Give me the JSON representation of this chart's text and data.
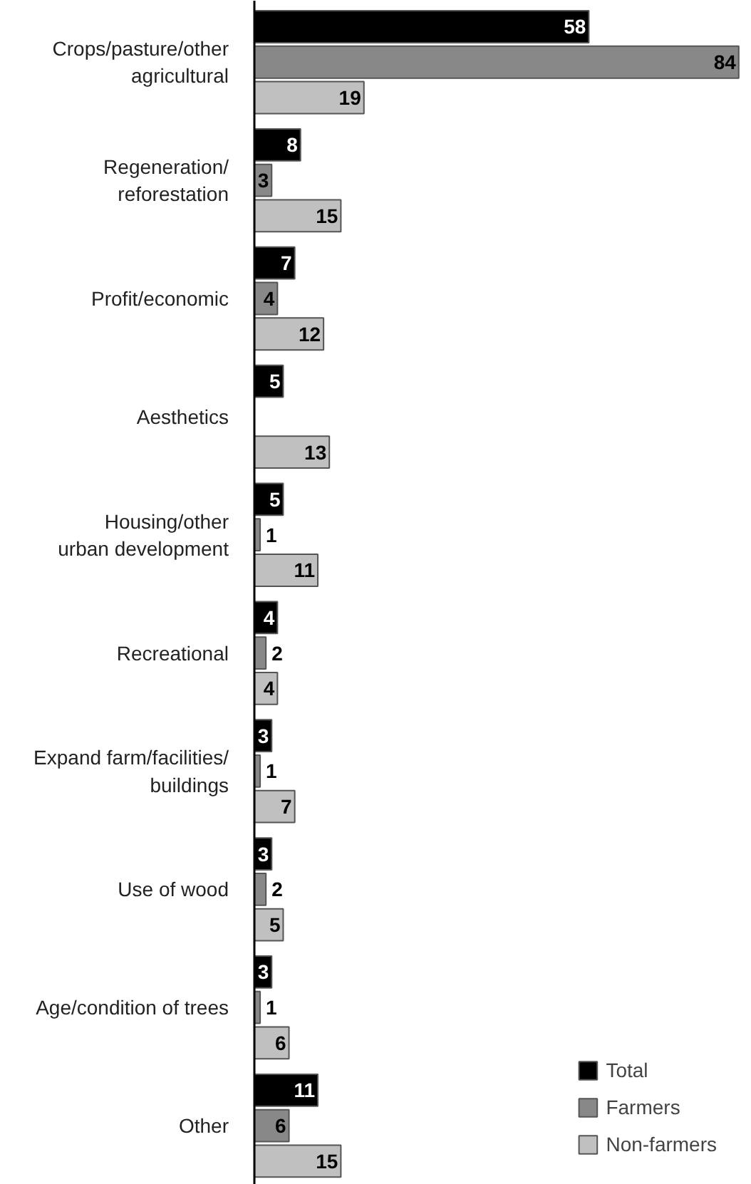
{
  "chart_data": {
    "type": "bar",
    "orientation": "horizontal",
    "categories": [
      "Crops/pasture/other\nagricultural",
      "Regeneration/\nreforestation",
      "Profit/economic",
      "Aesthetics",
      "Housing/other\nurban development",
      "Recreational",
      "Expand farm/facilities/\nbuildings",
      "Use of wood",
      "Age/condition of trees",
      "Other"
    ],
    "series": [
      {
        "name": "Total",
        "color": "#000000",
        "values": [
          58,
          8,
          7,
          5,
          5,
          4,
          3,
          3,
          3,
          11
        ]
      },
      {
        "name": "Farmers",
        "color": "#888888",
        "values": [
          84,
          3,
          4,
          null,
          1,
          2,
          1,
          2,
          1,
          6
        ]
      },
      {
        "name": "Non-farmers",
        "color": "#c0c0c0",
        "values": [
          19,
          15,
          12,
          13,
          11,
          4,
          7,
          5,
          6,
          15
        ]
      }
    ],
    "data_labels": true,
    "legend": "bottom right",
    "grid": false
  }
}
